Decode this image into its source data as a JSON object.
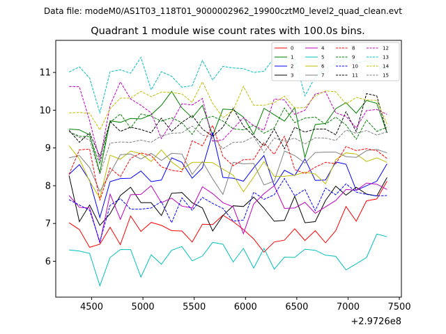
{
  "chart_data": {
    "type": "line",
    "suptitle": "Data file: modeM0/AS1T03_118T01_9000002962_19900cztM0_level2_quad_clean.evt",
    "title": "Quadrant 1 module wise count rates with 100.0s bins.",
    "xlabel": "",
    "ylabel": "",
    "x_offset_label": "+2.9726e8",
    "xlim": [
      4150,
      7520
    ],
    "ylim": [
      5.05,
      11.85
    ],
    "xticks": [
      4500,
      5000,
      5500,
      6000,
      6500,
      7000,
      7500
    ],
    "yticks": [
      6,
      7,
      8,
      9,
      10,
      11
    ],
    "legend_position": "top-right",
    "x": [
      4280,
      4380,
      4480,
      4580,
      4680,
      4780,
      4880,
      4980,
      5080,
      5180,
      5280,
      5380,
      5480,
      5580,
      5680,
      5780,
      5880,
      5980,
      6080,
      6180,
      6280,
      6380,
      6480,
      6580,
      6680,
      6780,
      6880,
      6980,
      7080,
      7180,
      7280,
      7380
    ],
    "series": [
      {
        "name": "0",
        "color": "#ff0000",
        "dash": "solid",
        "values": [
          7.02,
          6.84,
          6.37,
          6.45,
          6.9,
          6.44,
          7.2,
          6.79,
          7.03,
          6.95,
          6.81,
          6.8,
          6.51,
          6.98,
          6.97,
          7.22,
          7.05,
          6.84,
          6.59,
          6.24,
          6.51,
          6.56,
          6.86,
          6.55,
          6.81,
          6.49,
          6.81,
          7.45,
          7.06,
          7.6,
          7.65,
          8.12
        ]
      },
      {
        "name": "1",
        "color": "#008000",
        "dash": "solid",
        "values": [
          9.5,
          9.48,
          9.35,
          8.35,
          9.72,
          9.68,
          9.78,
          9.77,
          9.88,
          10.13,
          10.5,
          10.06,
          9.8,
          10.13,
          9.33,
          10.03,
          10.01,
          9.82,
          9.36,
          10.05,
          9.88,
          9.71,
          10.07,
          8.75,
          9.62,
          9.65,
          10.04,
          10.2,
          9.92,
          10.26,
          10.18,
          9.4
        ]
      },
      {
        "name": "2",
        "color": "#0000ff",
        "dash": "solid",
        "values": [
          8.3,
          8.56,
          8.14,
          7.16,
          8.11,
          8.19,
          8.2,
          8.39,
          8.11,
          8.15,
          8.74,
          8.62,
          8.2,
          8.47,
          9.4,
          8.22,
          8.2,
          8.12,
          8.48,
          8.8,
          8.0,
          8.41,
          8.27,
          8.71,
          8.14,
          8.15,
          8.63,
          8.57,
          7.88,
          8.0,
          8.12,
          8.58
        ]
      },
      {
        "name": "3",
        "color": "#000000",
        "dash": "solid",
        "values": [
          8.27,
          7.05,
          7.49,
          6.95,
          7.26,
          7.74,
          7.96,
          7.55,
          7.55,
          7.21,
          7.8,
          7.82,
          7.55,
          7.41,
          6.8,
          7.21,
          7.47,
          7.45,
          7.7,
          7.4,
          7.06,
          7.08,
          7.72,
          7.02,
          7.05,
          7.61,
          7.99,
          7.75,
          7.96,
          7.78,
          7.73,
          8.22
        ]
      },
      {
        "name": "4",
        "color": "#bf00bf",
        "dash": "solid",
        "values": [
          7.74,
          7.43,
          7.41,
          6.48,
          7.78,
          7.11,
          7.76,
          7.77,
          8.0,
          7.55,
          7.67,
          7.46,
          7.41,
          7.97,
          7.79,
          7.55,
          7.44,
          6.73,
          7.52,
          7.79,
          8.0,
          7.4,
          7.41,
          7.56,
          7.27,
          7.44,
          7.61,
          7.9,
          7.88,
          8.07,
          8.04,
          7.9
        ]
      },
      {
        "name": "5",
        "color": "#00bfbf",
        "dash": "solid",
        "values": [
          6.3,
          6.27,
          6.21,
          5.35,
          6.1,
          6.31,
          6.31,
          5.58,
          6.17,
          5.92,
          6.29,
          6.39,
          6.01,
          6.14,
          6.5,
          6.45,
          5.98,
          6.34,
          5.82,
          6.34,
          5.79,
          6.11,
          6.1,
          6.32,
          6.29,
          6.16,
          6.13,
          5.77,
          5.93,
          6.1,
          6.72,
          6.65
        ]
      },
      {
        "name": "6",
        "color": "#bfbf00",
        "dash": "solid",
        "values": [
          9.06,
          8.71,
          8.12,
          7.67,
          8.81,
          8.7,
          8.92,
          8.85,
          8.64,
          8.95,
          8.63,
          8.43,
          8.62,
          8.62,
          8.61,
          8.44,
          8.28,
          7.84,
          8.23,
          8.64,
          8.25,
          8.25,
          8.28,
          8.36,
          8.31,
          8.05,
          8.69,
          8.87,
          8.84,
          8.64,
          8.74,
          8.62
        ]
      },
      {
        "name": "7",
        "color": "#808080",
        "dash": "solid",
        "values": [
          8.74,
          8.8,
          8.48,
          7.85,
          8.33,
          8.82,
          8.84,
          8.71,
          8.86,
          8.67,
          8.86,
          8.84,
          8.3,
          8.64,
          8.18,
          7.77,
          8.62,
          8.58,
          8.59,
          8.02,
          8.12,
          8.92,
          8.8,
          8.6,
          8.88,
          8.89,
          8.89,
          8.77,
          8.75,
          8.93,
          8.96,
          8.87
        ]
      },
      {
        "name": "8",
        "color": "#ff0000",
        "dash": "dashed",
        "values": [
          8.3,
          8.95,
          8.97,
          7.61,
          8.47,
          8.24,
          8.72,
          8.87,
          8.8,
          8.5,
          8.41,
          8.37,
          9.19,
          9.06,
          9.6,
          8.78,
          8.53,
          8.69,
          8.7,
          9.14,
          8.83,
          9.31,
          8.43,
          8.32,
          8.49,
          8.62,
          8.58,
          9.04,
          8.93,
          8.98,
          8.93,
          8.72
        ]
      },
      {
        "name": "9",
        "color": "#008000",
        "dash": "dashed",
        "values": [
          9.43,
          9.31,
          9.3,
          8.58,
          9.68,
          9.9,
          9.53,
          9.9,
          9.84,
          9.71,
          9.8,
          9.67,
          9.36,
          9.77,
          9.84,
          9.71,
          9.51,
          9.48,
          9.6,
          9.39,
          9.53,
          10.06,
          9.67,
          9.79,
          9.82,
          9.63,
          9.82,
          9.61,
          9.23,
          9.74,
          9.44,
          9.55
        ]
      },
      {
        "name": "10",
        "color": "#0000ff",
        "dash": "dashed",
        "values": [
          7.63,
          7.49,
          7.35,
          6.52,
          7.48,
          7.66,
          7.38,
          7.38,
          7.41,
          7.58,
          7.02,
          7.68,
          7.35,
          7.69,
          7.53,
          7.4,
          7.06,
          7.09,
          7.83,
          7.64,
          7.76,
          8.19,
          7.73,
          7.9,
          7.34,
          7.94,
          7.76,
          8.05,
          7.83,
          7.77,
          7.73,
          7.74
        ]
      },
      {
        "name": "11",
        "color": "#000000",
        "dash": "dashed",
        "values": [
          9.47,
          9.15,
          9.4,
          8.77,
          9.7,
          9.44,
          9.55,
          9.49,
          9.4,
          9.79,
          9.44,
          9.68,
          9.86,
          9.5,
          9.31,
          9.55,
          10.05,
          9.58,
          9.32,
          9.05,
          9.5,
          8.98,
          9.55,
          9.42,
          9.5,
          9.5,
          9.35,
          9.96,
          9.43,
          10.44,
          10.38,
          9.4
        ]
      },
      {
        "name": "12",
        "color": "#bf00bf",
        "dash": "dashed",
        "values": [
          10.63,
          10.62,
          9.72,
          8.66,
          10.13,
          10.75,
          10.3,
          10.13,
          9.93,
          9.25,
          9.67,
          10.17,
          10.14,
          10.31,
          9.18,
          9.22,
          9.51,
          9.8,
          9.59,
          9.47,
          10.3,
          10.27,
          9.89,
          10.0,
          10.43,
          10.49,
          9.93,
          9.84,
          9.53,
          9.99,
          10.02,
          9.89
        ]
      },
      {
        "name": "13",
        "color": "#00bfbf",
        "dash": "dashed",
        "values": [
          11.01,
          11.15,
          10.85,
          9.93,
          11.02,
          11.07,
          10.98,
          11.4,
          10.54,
          11.02,
          10.9,
          10.61,
          10.65,
          11.32,
          10.8,
          11.16,
          11.12,
          11.1,
          11.0,
          11.03,
          11.39,
          11.39,
          11.38,
          10.38,
          10.88,
          11.09,
          11.24,
          11.39,
          11.26,
          11.3,
          11.17,
          11.12
        ]
      },
      {
        "name": "14",
        "color": "#bfbf00",
        "dash": "dashed",
        "values": [
          9.93,
          9.94,
          9.92,
          9.48,
          10.04,
          10.32,
          10.32,
          10.5,
          10.36,
          10.48,
          10.47,
          10.43,
          10.21,
          10.75,
          10.18,
          9.8,
          10.0,
          10.63,
          10.13,
          10.13,
          10.2,
          10.37,
          10.06,
          10.07,
          10.38,
          10.51,
          10.49,
          10.16,
          10.34,
          10.27,
          10.26,
          9.63
        ]
      },
      {
        "name": "15",
        "color": "#808080",
        "dash": "dashed",
        "values": [
          9.43,
          9.28,
          9.22,
          8.3,
          9.13,
          9.16,
          9.15,
          9.21,
          9.15,
          9.32,
          9.39,
          9.4,
          9.58,
          9.34,
          9.29,
          8.98,
          9.15,
          9.16,
          9.3,
          8.88,
          9.26,
          9.18,
          9.26,
          9.11,
          9.27,
          9.26,
          9.2,
          9.47,
          9.39,
          9.46,
          9.34,
          9.43
        ]
      }
    ]
  }
}
